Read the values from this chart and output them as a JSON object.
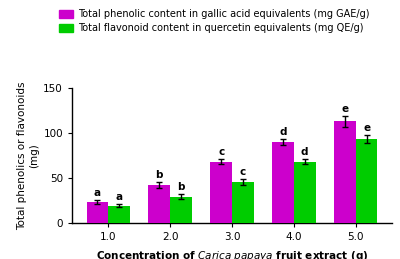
{
  "categories": [
    "1.0",
    "2.0",
    "3.0",
    "4.0",
    "5.0"
  ],
  "phenolic_values": [
    23,
    42,
    68,
    90,
    113
  ],
  "flavonoid_values": [
    19,
    29,
    45,
    68,
    93
  ],
  "phenolic_errors": [
    2.5,
    3.5,
    3.0,
    3.5,
    6.0
  ],
  "flavonoid_errors": [
    2.0,
    3.0,
    3.5,
    3.0,
    4.5
  ],
  "phenolic_labels": [
    "a",
    "b",
    "c",
    "d",
    "e"
  ],
  "flavonoid_labels": [
    "a",
    "b",
    "c",
    "d",
    "e"
  ],
  "phenolic_color": "#CC00CC",
  "flavonoid_color": "#00CC00",
  "bar_width": 0.35,
  "ylim": [
    0,
    150
  ],
  "yticks": [
    0,
    50,
    100,
    150
  ],
  "ylabel": "Total phenolics or flavonoids\n(mg)",
  "legend_phenolic": "Total phenolic content in gallic acid equivalents (mg GAE/g)",
  "legend_flavonoid": "Total flavonoid content in quercetin equivalents (mg QE/g)",
  "label_fontsize": 7.5,
  "tick_fontsize": 7.5,
  "annot_fontsize": 7.5,
  "legend_fontsize": 7.0
}
